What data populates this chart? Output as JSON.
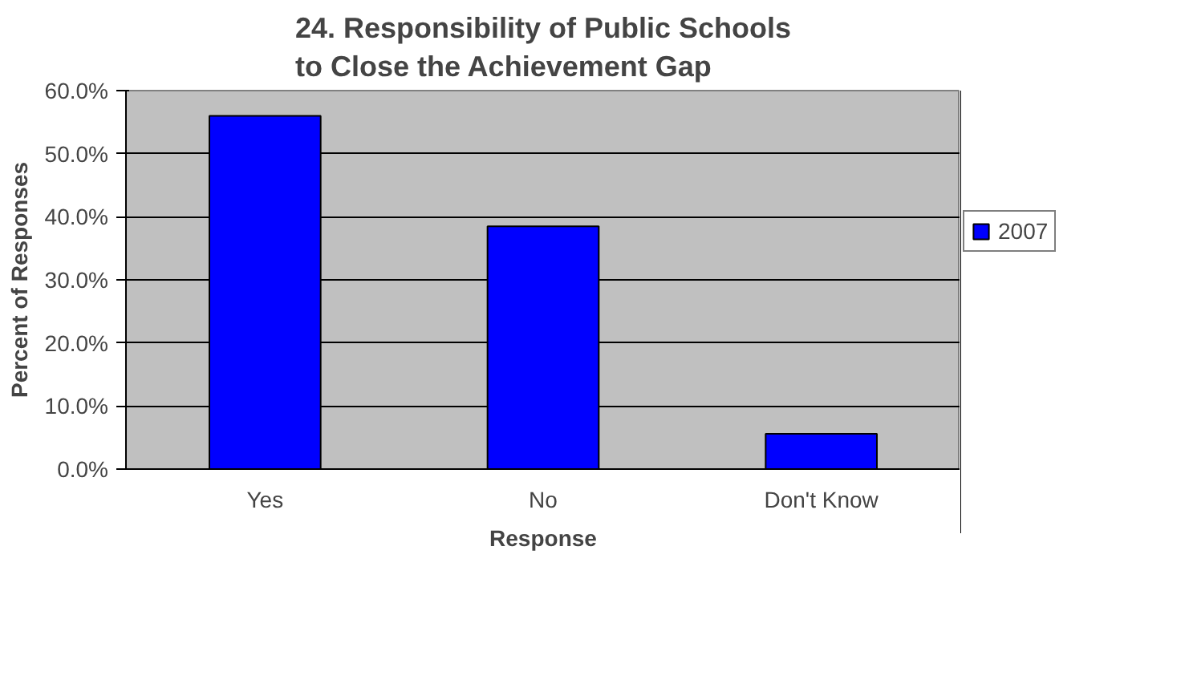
{
  "chart_data": {
    "type": "bar",
    "title": "24. Responsibility of Public Schools to Close the Achievement Gap",
    "xlabel": "Response",
    "ylabel": "Percent of Responses",
    "categories": [
      "Yes",
      "No",
      "Don't Know"
    ],
    "series": [
      {
        "name": "2007",
        "color": "#0000ff",
        "values": [
          56.0,
          38.5,
          5.6
        ]
      }
    ],
    "ylim": [
      0,
      60
    ],
    "yticks": [
      {
        "value": 0,
        "label": "0.0%"
      },
      {
        "value": 10,
        "label": "10.0%"
      },
      {
        "value": 20,
        "label": "20.0%"
      },
      {
        "value": 30,
        "label": "30.0%"
      },
      {
        "value": 40,
        "label": "40.0%"
      },
      {
        "value": 50,
        "label": "50.0%"
      },
      {
        "value": 60,
        "label": "60.0%"
      }
    ],
    "grid": "y",
    "legend": "right"
  }
}
